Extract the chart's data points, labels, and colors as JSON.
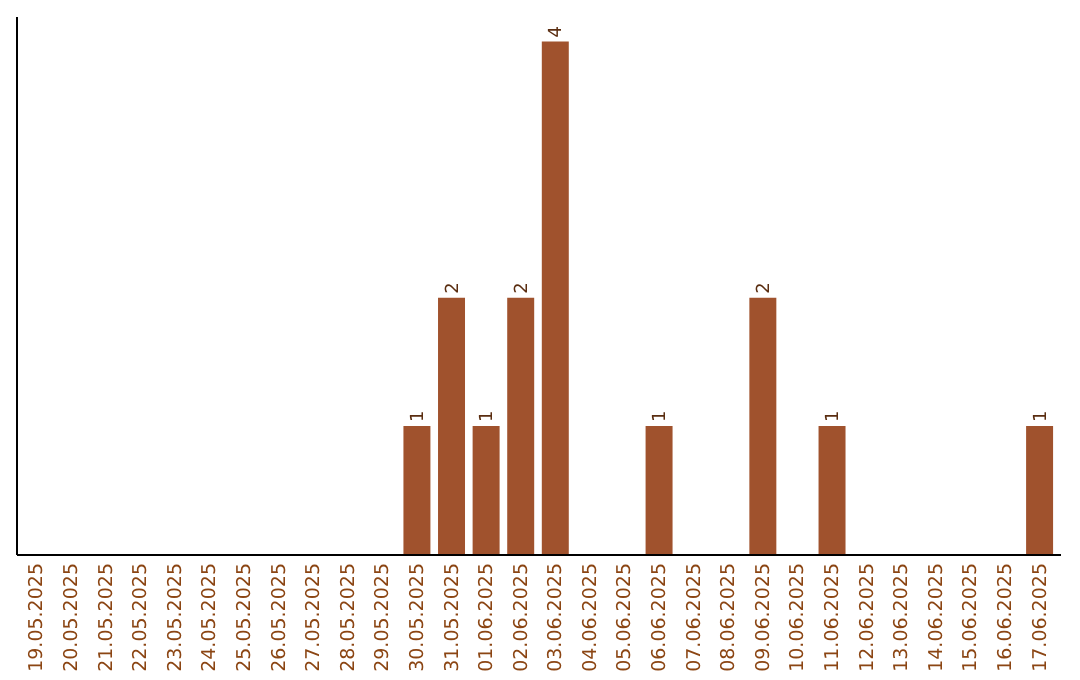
{
  "chart_data": {
    "type": "bar",
    "categories": [
      "19.05.2025",
      "20.05.2025",
      "21.05.2025",
      "22.05.2025",
      "23.05.2025",
      "24.05.2025",
      "25.05.2025",
      "26.05.2025",
      "27.05.2025",
      "28.05.2025",
      "29.05.2025",
      "30.05.2025",
      "31.05.2025",
      "01.06.2025",
      "02.06.2025",
      "03.06.2025",
      "04.06.2025",
      "05.06.2025",
      "06.06.2025",
      "07.06.2025",
      "08.06.2025",
      "09.06.2025",
      "10.06.2025",
      "11.06.2025",
      "12.06.2025",
      "13.06.2025",
      "14.06.2025",
      "15.06.2025",
      "16.06.2025",
      "17.06.2025"
    ],
    "values": [
      0,
      0,
      0,
      0,
      0,
      0,
      0,
      0,
      0,
      0,
      0,
      1,
      2,
      1,
      2,
      4,
      0,
      0,
      1,
      0,
      0,
      2,
      0,
      1,
      0,
      0,
      0,
      0,
      0,
      1
    ],
    "value_labels": [
      null,
      null,
      null,
      null,
      null,
      null,
      null,
      null,
      null,
      null,
      null,
      "1",
      "2",
      "1",
      "2",
      "4",
      null,
      null,
      "1",
      null,
      null,
      "2",
      null,
      "1",
      null,
      null,
      null,
      null,
      null,
      "1"
    ],
    "color": "#a0522d",
    "ylim": [
      0,
      4.2
    ],
    "tick_labels": "x"
  }
}
